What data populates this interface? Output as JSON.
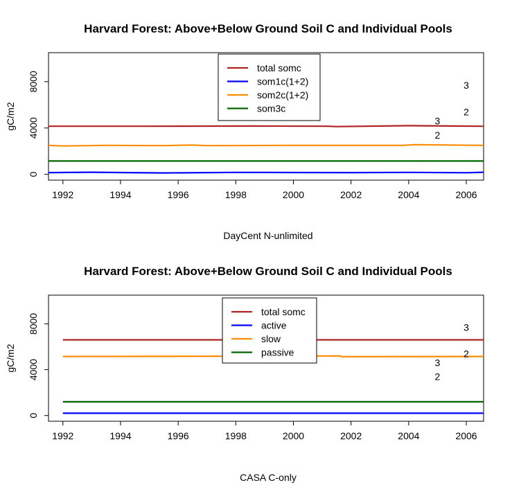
{
  "chart_data": [
    {
      "type": "line",
      "title": "Harvard Forest: Above+Below Ground Soil C and Individual Pools",
      "xlabel": "DayCent N-unlimited",
      "ylabel": "gC/m2",
      "xlim": [
        1991.5,
        2006.6
      ],
      "ylim": [
        -500,
        10500
      ],
      "x_ticks": [
        1992,
        1994,
        1996,
        1998,
        2000,
        2002,
        2004,
        2006
      ],
      "y_ticks": [
        0,
        4000,
        8000
      ],
      "grid": false,
      "legend_position": "top-center",
      "annotations": [
        {
          "text": "3",
          "x": 2006.0,
          "y": 7700
        },
        {
          "text": "2",
          "x": 2006.0,
          "y": 5400
        },
        {
          "text": "3",
          "x": 2005.0,
          "y": 4600
        },
        {
          "text": "2",
          "x": 2005.0,
          "y": 3400
        }
      ],
      "series": [
        {
          "name": "total somc",
          "color": "#b22222",
          "x": [
            1991.5,
            1995,
            1998.7,
            2001.2,
            2001.5,
            2004,
            2005.5,
            2006.6
          ],
          "y": [
            4150,
            4150,
            4170,
            4150,
            4120,
            4200,
            4170,
            4150
          ]
        },
        {
          "name": "som1c(1+2)",
          "color": "#0000ff",
          "x": [
            1991.5,
            1993,
            1995.5,
            1998,
            2000,
            2002,
            2004,
            2006,
            2006.6
          ],
          "y": [
            150,
            180,
            120,
            170,
            160,
            150,
            170,
            140,
            180
          ]
        },
        {
          "name": "som2c(1+2)",
          "color": "#ff8c00",
          "x": [
            1991.5,
            1992,
            1993.5,
            1995.5,
            1996.5,
            1997,
            2000,
            2003.8,
            2004.2,
            2006.6
          ],
          "y": [
            2500,
            2450,
            2500,
            2480,
            2530,
            2480,
            2500,
            2500,
            2560,
            2500
          ]
        },
        {
          "name": "som3c",
          "color": "#006400",
          "x": [
            1991.5,
            2006.6
          ],
          "y": [
            1150,
            1150
          ]
        }
      ]
    },
    {
      "type": "line",
      "title": "Harvard Forest: Above+Below Ground Soil C and Individual Pools",
      "xlabel": "CASA C-only",
      "ylabel": "gC/m2",
      "xlim": [
        1991.5,
        2006.6
      ],
      "ylim": [
        -500,
        10500
      ],
      "x_ticks": [
        1992,
        1994,
        1996,
        1998,
        2000,
        2002,
        2004,
        2006
      ],
      "y_ticks": [
        0,
        4000,
        8000
      ],
      "grid": false,
      "legend_position": "top-center",
      "annotations": [
        {
          "text": "3",
          "x": 2006.0,
          "y": 7700
        },
        {
          "text": "2",
          "x": 2006.0,
          "y": 5400
        },
        {
          "text": "3",
          "x": 2005.0,
          "y": 4600
        },
        {
          "text": "2",
          "x": 2005.0,
          "y": 3400
        }
      ],
      "series": [
        {
          "name": "total somc",
          "color": "#b22222",
          "x": [
            1992,
            2006.6
          ],
          "y": [
            6600,
            6600
          ]
        },
        {
          "name": "active",
          "color": "#0000ff",
          "x": [
            1992,
            2006.6
          ],
          "y": [
            200,
            200
          ]
        },
        {
          "name": "slow",
          "color": "#ff8c00",
          "x": [
            1992,
            2000,
            2001.6,
            2001.7,
            2006.6
          ],
          "y": [
            5150,
            5180,
            5200,
            5130,
            5150
          ]
        },
        {
          "name": "passive",
          "color": "#006400",
          "x": [
            1992,
            2006.6
          ],
          "y": [
            1200,
            1200
          ]
        }
      ]
    }
  ]
}
